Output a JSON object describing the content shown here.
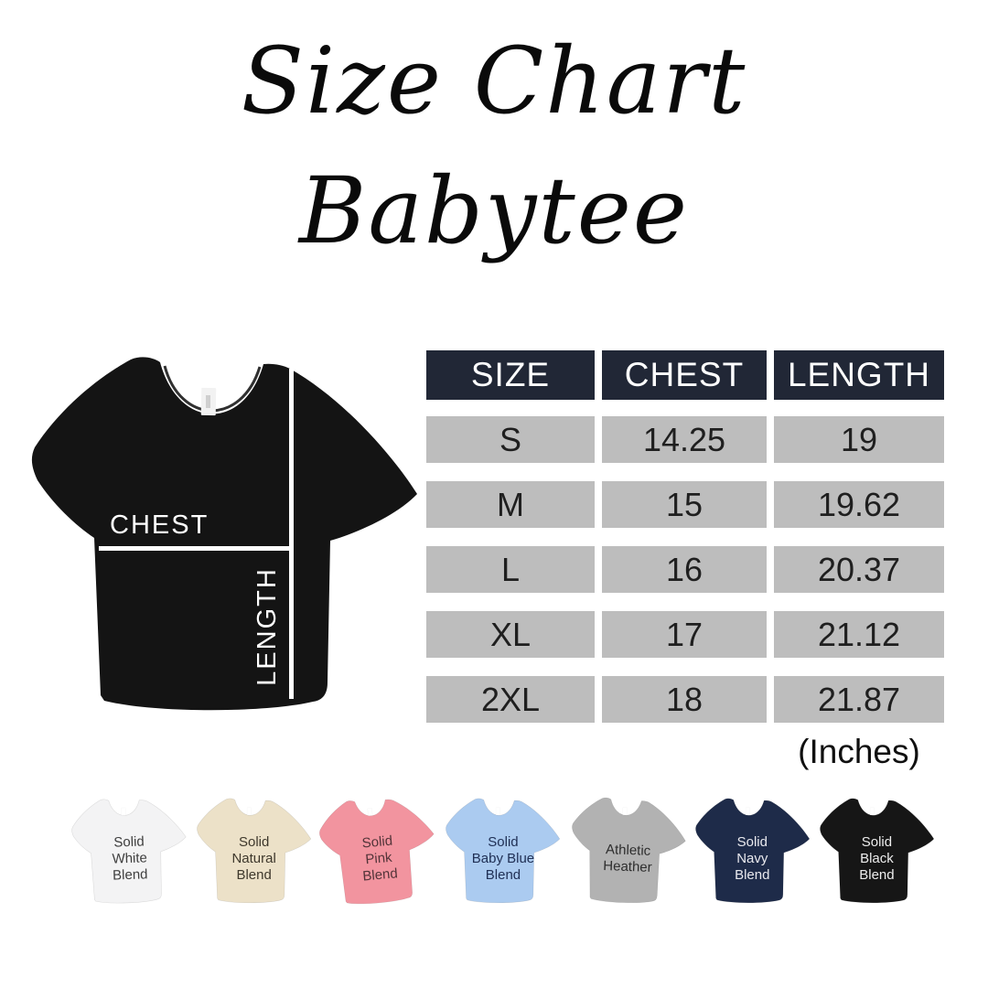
{
  "title": {
    "line1": "Size Chart",
    "line2": "Babytee"
  },
  "diagram": {
    "chest_label": "CHEST",
    "length_label": "LENGTH",
    "shirt_color": "#141414",
    "line_color": "#ffffff"
  },
  "chart_data": {
    "type": "table",
    "title": "Size Chart Babytee",
    "columns": [
      "SIZE",
      "CHEST",
      "LENGTH"
    ],
    "rows": [
      [
        "S",
        "14.25",
        "19"
      ],
      [
        "M",
        "15",
        "19.62"
      ],
      [
        "L",
        "16",
        "20.37"
      ],
      [
        "XL",
        "17",
        "21.12"
      ],
      [
        "2XL",
        "18",
        "21.87"
      ]
    ],
    "units_note": "(Inches)",
    "header_bg": "#212736",
    "header_text": "#ffffff",
    "row_bg": "#bdbdbd",
    "row_text": "#1f1f1f"
  },
  "swatches": [
    {
      "name": "solid-white-blend",
      "label": "Solid\nWhite\nBlend",
      "color": "#f3f3f4",
      "text_color": "#3f3f3f"
    },
    {
      "name": "solid-natural-blend",
      "label": "Solid\nNatural\nBlend",
      "color": "#ece1c8",
      "text_color": "#3e382c"
    },
    {
      "name": "solid-pink-blend",
      "label": "Solid\nPink\nBlend",
      "color": "#f2949f",
      "text_color": "#533439"
    },
    {
      "name": "solid-baby-blue-blend",
      "label": "Solid\nBaby Blue\nBlend",
      "color": "#abcbf0",
      "text_color": "#203055"
    },
    {
      "name": "athletic-heather",
      "label": "Athletic\nHeather",
      "color": "#b2b2b2",
      "text_color": "#2e2e2e"
    },
    {
      "name": "solid-navy-blend",
      "label": "Solid\nNavy\nBlend",
      "color": "#1e2b49",
      "text_color": "#e9e9ee"
    },
    {
      "name": "solid-black-blend",
      "label": "Solid\nBlack\nBlend",
      "color": "#161616",
      "text_color": "#ededed"
    }
  ]
}
